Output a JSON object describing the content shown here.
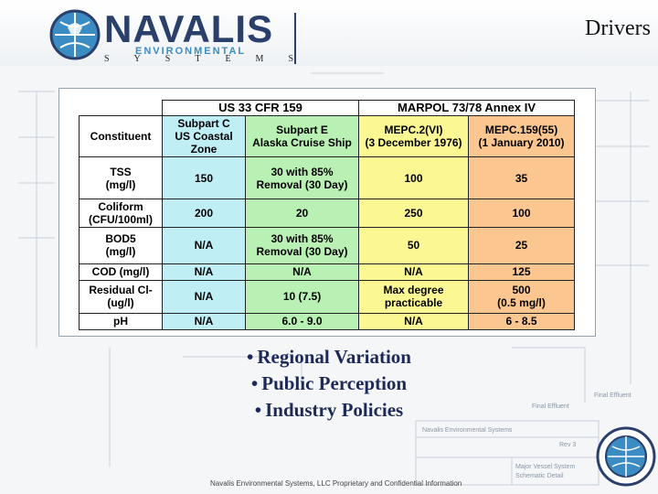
{
  "header": {
    "logo_word": "NAVALIS",
    "logo_tagline": "ENVIRONMENTAL",
    "logo_systems": "SYSTEMS",
    "slide_title": "Drivers"
  },
  "table": {
    "groups": {
      "us": "US 33 CFR 159",
      "marpol": "MARPOL 73/78 Annex IV"
    },
    "headers": {
      "constituent": "Constituent",
      "subpart_c": "Subpart C\nUS Coastal\nZone",
      "subpart_e": "Subpart E\nAlaska Cruise Ship",
      "mepc2": "MEPC.2(VI)\n(3 December 1976)",
      "mepc159": "MEPC.159(55)\n(1 January 2010)"
    },
    "rows": [
      {
        "constituent": "TSS\n(mg/l)",
        "subpart_c": "150",
        "subpart_e": "30 with 85%\nRemoval (30 Day)",
        "mepc2": "100",
        "mepc159": "35"
      },
      {
        "constituent": "Coliform\n(CFU/100ml)",
        "subpart_c": "200",
        "subpart_e": "20",
        "mepc2": "250",
        "mepc159": "100"
      },
      {
        "constituent": "BOD5\n(mg/l)",
        "subpart_c": "N/A",
        "subpart_e": "30 with 85%\nRemoval (30 Day)",
        "mepc2": "50",
        "mepc159": "25"
      },
      {
        "constituent": "COD (mg/l)",
        "subpart_c": "N/A",
        "subpart_e": "N/A",
        "mepc2": "N/A",
        "mepc159": "125"
      },
      {
        "constituent": "Residual Cl-\n(ug/l)",
        "subpart_c": "N/A",
        "subpart_e": "10 (7.5)",
        "mepc2": "Max degree\npracticable",
        "mepc159": "500\n(0.5 mg/l)"
      },
      {
        "constituent": "pH",
        "subpart_c": "N/A",
        "subpart_e": "6.0 - 9.0",
        "mepc2": "N/A",
        "mepc159": "6 - 8.5"
      }
    ]
  },
  "bullets": [
    "Regional Variation",
    "Public Perception",
    "Industry Policies"
  ],
  "bullet_symbol": "•",
  "footer": "Navalis Environmental Systems, LLC Proprietary and Confidential Information",
  "background": {
    "company": "Navalis Environmental Systems",
    "rev": "Rev 3",
    "label_major": "Major Vessel System",
    "label_schematic": "Schematic Detail",
    "label_final": "Final Effluent",
    "label_final2": "Final Effluent"
  },
  "colors": {
    "cyan": "#bfeef5",
    "green": "#b9f0b3",
    "yellow": "#fbf793",
    "orange": "#fbc68f",
    "brand_navy": "#2b3f6b",
    "brand_blue": "#3c8cc4"
  }
}
